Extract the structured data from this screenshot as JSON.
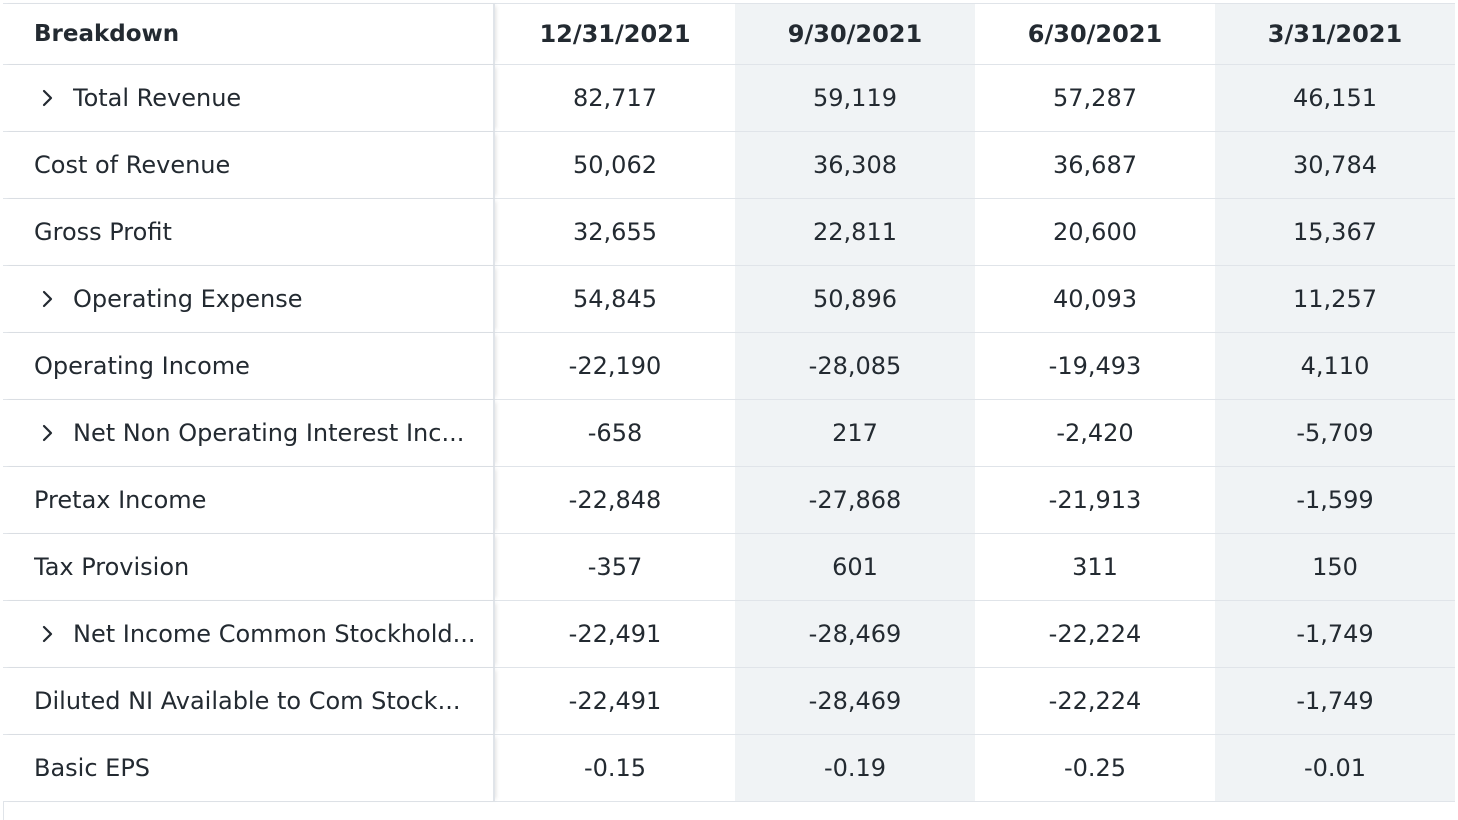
{
  "table": {
    "header": {
      "label": "Breakdown",
      "columns": [
        "12/31/2021",
        "9/30/2021",
        "6/30/2021",
        "3/31/2021"
      ]
    },
    "rows": [
      {
        "label": "Total Revenue",
        "expandable": true,
        "values": [
          "82,717",
          "59,119",
          "57,287",
          "46,151"
        ]
      },
      {
        "label": "Cost of Revenue",
        "expandable": false,
        "values": [
          "50,062",
          "36,308",
          "36,687",
          "30,784"
        ]
      },
      {
        "label": "Gross Profit",
        "expandable": false,
        "values": [
          "32,655",
          "22,811",
          "20,600",
          "15,367"
        ]
      },
      {
        "label": "Operating Expense",
        "expandable": true,
        "values": [
          "54,845",
          "50,896",
          "40,093",
          "11,257"
        ]
      },
      {
        "label": "Operating Income",
        "expandable": false,
        "values": [
          "-22,190",
          "-28,085",
          "-19,493",
          "4,110"
        ]
      },
      {
        "label": "Net Non Operating Interest Inc...",
        "expandable": true,
        "values": [
          "-658",
          "217",
          "-2,420",
          "-5,709"
        ]
      },
      {
        "label": "Pretax Income",
        "expandable": false,
        "values": [
          "-22,848",
          "-27,868",
          "-21,913",
          "-1,599"
        ]
      },
      {
        "label": "Tax Provision",
        "expandable": false,
        "values": [
          "-357",
          "601",
          "311",
          "150"
        ]
      },
      {
        "label": "Net Income Common Stockhold...",
        "expandable": true,
        "values": [
          "-22,491",
          "-28,469",
          "-22,224",
          "-1,749"
        ]
      },
      {
        "label": "Diluted NI Available to Com Stock...",
        "expandable": false,
        "values": [
          "-22,491",
          "-28,469",
          "-22,224",
          "-1,749"
        ]
      },
      {
        "label": "Basic EPS",
        "expandable": false,
        "values": [
          "-0.15",
          "-0.19",
          "-0.25",
          "-0.01"
        ]
      }
    ]
  },
  "icons": {
    "expand": "chevron-right-icon"
  },
  "colors": {
    "text": "#232a31",
    "border": "#e0e4e9",
    "shaded_column": "#f0f3f5"
  }
}
